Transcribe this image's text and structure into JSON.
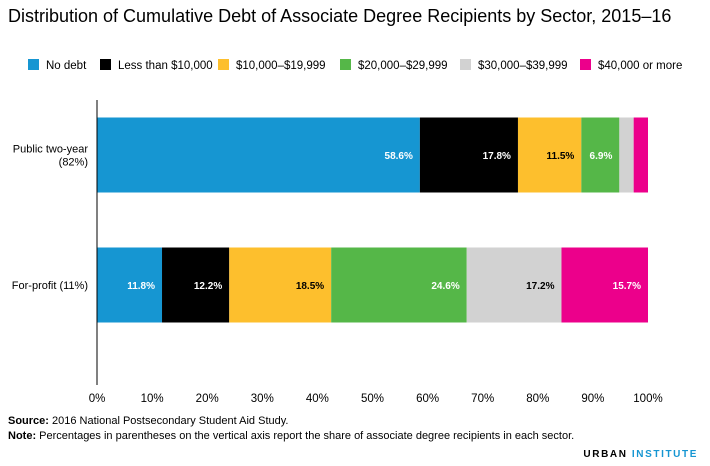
{
  "chart_data": {
    "type": "bar",
    "orientation": "horizontal",
    "stacked": true,
    "title": "Distribution of Cumulative Debt of Associate Degree Recipients by Sector, 2015–16",
    "categories": [
      "Public two-year\n(82%)",
      "For-profit (11%)"
    ],
    "series": [
      {
        "name": "No debt",
        "color": "#1696d2",
        "values": [
          58.6,
          11.8
        ],
        "labels": [
          "58.6%",
          "11.8%"
        ]
      },
      {
        "name": "Less than $10,000",
        "color": "#000000",
        "values": [
          17.8,
          12.2
        ],
        "labels": [
          "17.8%",
          "12.2%"
        ]
      },
      {
        "name": "$10,000–$19,999",
        "color": "#fdbf2d",
        "values": [
          11.5,
          18.5
        ],
        "labels": [
          "11.5%",
          "18.5%"
        ]
      },
      {
        "name": "$20,000–$29,999",
        "color": "#55b748",
        "values": [
          6.9,
          24.6
        ],
        "labels": [
          "6.9%",
          "24.6%"
        ]
      },
      {
        "name": "$30,000–$39,999",
        "color": "#d2d2d2",
        "values": [
          2.6,
          17.2
        ],
        "labels": [
          "",
          "17.2%"
        ]
      },
      {
        "name": "$40,000 or more",
        "color": "#ec008b",
        "values": [
          2.6,
          15.7
        ],
        "labels": [
          "",
          "15.7%"
        ]
      }
    ],
    "xlim": [
      0,
      100
    ],
    "xticks": [
      0,
      10,
      20,
      30,
      40,
      50,
      60,
      70,
      80,
      90,
      100
    ],
    "xtick_labels": [
      "0%",
      "10%",
      "20%",
      "30%",
      "40%",
      "50%",
      "60%",
      "70%",
      "80%",
      "90%",
      "100%"
    ],
    "xlabel": "",
    "ylabel": "",
    "grid": false,
    "legend_position": "top"
  },
  "footer": {
    "source_label": "Source:",
    "source_text": " 2016 National Postsecondary Student Aid Study.",
    "note_label": "Note:",
    "note_text": " Percentages in parentheses on the vertical axis report the share of associate degree recipients in each sector."
  },
  "brand": {
    "part1": "URBAN",
    "part2": "INSTITUTE"
  }
}
